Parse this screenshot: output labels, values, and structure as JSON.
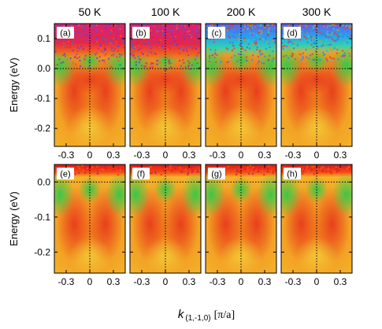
{
  "figure": {
    "ylabel": "Energy (eV)",
    "xlabel_prefix": "k",
    "xlabel_sub": "(1,-1,0)",
    "xlabel_unit": "[π/a]"
  },
  "chart_data": [
    {
      "type": "heatmap",
      "row": "top",
      "columns": [
        "50 K",
        "100 K",
        "200 K",
        "300 K"
      ],
      "panel_labels": [
        "(a)",
        "(b)",
        "(c)",
        "(d)"
      ],
      "xticks": [
        -0.3,
        0,
        0.3
      ],
      "xtick_labels": [
        "-0.3",
        "0",
        "0.3"
      ],
      "xlim": [
        -0.45,
        0.45
      ],
      "yticks": [
        0.1,
        0.0,
        -0.1,
        -0.2
      ],
      "ytick_labels": [
        "0.1",
        "0.0",
        "-0.1",
        "-0.2"
      ],
      "ylim": [
        -0.26,
        0.15
      ],
      "reference_lines": {
        "x": 0,
        "y": 0
      },
      "colormap": "rainbow"
    },
    {
      "type": "heatmap",
      "row": "bottom",
      "panel_labels": [
        "(e)",
        "(f)",
        "(g)",
        "(h)"
      ],
      "xticks": [
        -0.3,
        0,
        0.3
      ],
      "xtick_labels": [
        "-0.3",
        "0",
        "0.3"
      ],
      "xlim": [
        -0.45,
        0.45
      ],
      "yticks": [
        0.0,
        -0.1,
        -0.2
      ],
      "ytick_labels": [
        "0.0",
        "-0.1",
        "-0.2"
      ],
      "ylim": [
        -0.26,
        0.05
      ],
      "reference_lines": {
        "x": 0,
        "y": 0
      },
      "colormap": "rainbow"
    }
  ]
}
